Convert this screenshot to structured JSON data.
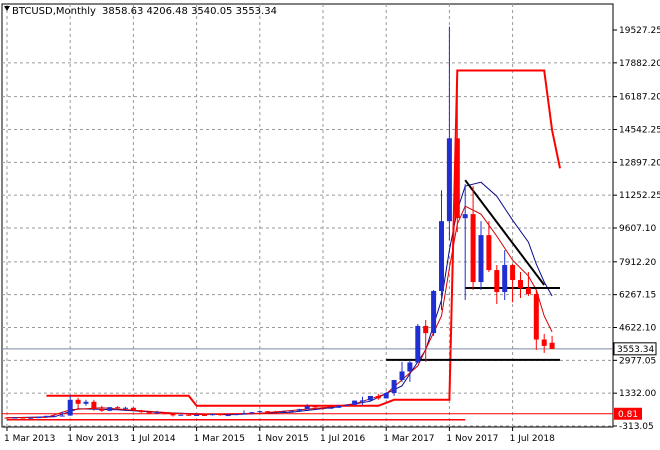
{
  "window": {
    "symbol_timeframe": "BTCUSD,Monthly",
    "ohlc": "3858.63 4206.48 3540.05 3553.34"
  },
  "colors": {
    "background": "#ffffff",
    "grid": "#9a9a9a",
    "bull_candle": "#1f2fd1",
    "bear_candle": "#ff0000",
    "ma_fast": "#d40000",
    "ma_slow": "#0a0a8c",
    "envelope_line": "#ff0000",
    "price_label_bg": "#ffffff",
    "red_label_bg": "#ff0000",
    "trendline": "#000000"
  },
  "chart_data": {
    "type": "candlestick",
    "title": "",
    "y_ticks": [
      19527.25,
      17882.2,
      16187.2,
      14542.25,
      12897.2,
      11252.25,
      9607.1,
      7912.2,
      6267.15,
      4622.1,
      2977.05,
      1332.0,
      -313.05
    ],
    "y_tick_labels": [
      "19527.25",
      "17882.20",
      "16187.20",
      "14542.25",
      "12897.20",
      "11252.25",
      "9607.10",
      "7912.20",
      "6267.15",
      "4622.10",
      "2977.05",
      "1332.00",
      "-313.05"
    ],
    "x_labels": [
      "1 Mar 2013",
      "1 Nov 2013",
      "1 Jul 2014",
      "1 Mar 2015",
      "1 Nov 2015",
      "1 Jul 2016",
      "1 Mar 2017",
      "1 Nov 2017",
      "1 Jul 2018"
    ],
    "x_label_month_index": [
      0,
      8,
      16,
      24,
      32,
      40,
      48,
      56,
      64
    ],
    "ylim": [
      -313.05,
      20300
    ],
    "grid": true,
    "current_price": "3553.34",
    "red_marker_label": "0.81",
    "candles": [
      [
        110,
        140,
        70,
        95
      ],
      [
        95,
        120,
        80,
        110
      ],
      [
        110,
        115,
        80,
        95
      ],
      [
        95,
        120,
        90,
        100
      ],
      [
        100,
        140,
        90,
        130
      ],
      [
        130,
        200,
        120,
        195
      ],
      [
        195,
        210,
        130,
        200
      ],
      [
        200,
        400,
        190,
        210
      ],
      [
        210,
        1200,
        200,
        1000
      ],
      [
        1000,
        1100,
        550,
        800
      ],
      [
        800,
        1000,
        700,
        900
      ],
      [
        900,
        1000,
        450,
        550
      ],
      [
        550,
        700,
        400,
        450
      ],
      [
        450,
        630,
        430,
        630
      ],
      [
        630,
        680,
        480,
        580
      ],
      [
        580,
        650,
        500,
        600
      ],
      [
        600,
        620,
        450,
        470
      ],
      [
        470,
        500,
        350,
        380
      ],
      [
        380,
        420,
        280,
        320
      ],
      [
        320,
        450,
        300,
        380
      ],
      [
        380,
        390,
        270,
        320
      ],
      [
        320,
        330,
        160,
        220
      ],
      [
        220,
        270,
        210,
        250
      ],
      [
        250,
        260,
        200,
        235
      ],
      [
        235,
        260,
        220,
        240
      ],
      [
        240,
        250,
        220,
        230
      ],
      [
        230,
        310,
        210,
        280
      ],
      [
        280,
        300,
        200,
        230
      ],
      [
        230,
        260,
        210,
        235
      ],
      [
        235,
        300,
        230,
        280
      ],
      [
        280,
        470,
        270,
        320
      ],
      [
        320,
        390,
        310,
        380
      ],
      [
        380,
        470,
        350,
        430
      ],
      [
        430,
        440,
        400,
        420
      ],
      [
        420,
        450,
        350,
        370
      ],
      [
        370,
        450,
        360,
        420
      ],
      [
        420,
        460,
        410,
        450
      ],
      [
        450,
        550,
        440,
        530
      ],
      [
        530,
        780,
        520,
        680
      ],
      [
        680,
        690,
        600,
        620
      ],
      [
        620,
        630,
        480,
        570
      ],
      [
        570,
        620,
        560,
        600
      ],
      [
        600,
        730,
        590,
        700
      ],
      [
        700,
        760,
        690,
        750
      ],
      [
        750,
        960,
        740,
        960
      ],
      [
        960,
        1150,
        750,
        970
      ],
      [
        970,
        1200,
        910,
        1190
      ],
      [
        1190,
        1300,
        1000,
        1070
      ],
      [
        1070,
        1400,
        1060,
        1340
      ],
      [
        1340,
        2000,
        1200,
        1990
      ],
      [
        1990,
        2900,
        1900,
        2420
      ],
      [
        2420,
        3000,
        1900,
        2870
      ],
      [
        2870,
        4800,
        2850,
        4700
      ],
      [
        4700,
        5000,
        2900,
        4340
      ],
      [
        4340,
        6500,
        4200,
        6450
      ],
      [
        6450,
        11500,
        5500,
        9950
      ],
      [
        9950,
        19700,
        9000,
        14100
      ],
      [
        14100,
        17200,
        9400,
        10100
      ],
      [
        10100,
        11800,
        6000,
        10300
      ],
      [
        10300,
        11700,
        6500,
        6900
      ],
      [
        6900,
        9950,
        6500,
        9250
      ],
      [
        9250,
        9950,
        7400,
        7500
      ],
      [
        7500,
        7750,
        5800,
        6400
      ],
      [
        6400,
        8500,
        6000,
        7750
      ],
      [
        7750,
        7800,
        5880,
        7000
      ],
      [
        7000,
        7400,
        6100,
        6600
      ],
      [
        6600,
        7400,
        6200,
        6300
      ],
      [
        6300,
        6500,
        3500,
        4020
      ],
      [
        4020,
        4300,
        3350,
        3700
      ],
      [
        3858.63,
        4206.48,
        3540.05,
        3553.34
      ]
    ],
    "ma_fast": [
      [
        0,
        100
      ],
      [
        5,
        120
      ],
      [
        8,
        500
      ],
      [
        12,
        600
      ],
      [
        16,
        480
      ],
      [
        24,
        260
      ],
      [
        32,
        330
      ],
      [
        40,
        600
      ],
      [
        44,
        800
      ],
      [
        48,
        1300
      ],
      [
        52,
        2700
      ],
      [
        55,
        5200
      ],
      [
        56,
        7600
      ],
      [
        57,
        9800
      ],
      [
        58,
        10700
      ],
      [
        60,
        10300
      ],
      [
        62,
        9200
      ],
      [
        64,
        8000
      ],
      [
        66,
        7200
      ],
      [
        67,
        6500
      ],
      [
        68,
        5200
      ],
      [
        69,
        4400
      ]
    ],
    "ma_slow": [
      [
        0,
        100
      ],
      [
        6,
        150
      ],
      [
        9,
        550
      ],
      [
        14,
        500
      ],
      [
        20,
        350
      ],
      [
        28,
        250
      ],
      [
        36,
        380
      ],
      [
        42,
        650
      ],
      [
        46,
        930
      ],
      [
        50,
        1700
      ],
      [
        53,
        3500
      ],
      [
        55,
        6000
      ],
      [
        56,
        8500
      ],
      [
        57,
        10500
      ],
      [
        58,
        11700
      ],
      [
        60,
        11900
      ],
      [
        62,
        11200
      ],
      [
        64,
        10000
      ],
      [
        66,
        8900
      ],
      [
        67,
        7800
      ],
      [
        68,
        6900
      ],
      [
        69,
        6200
      ]
    ],
    "envelope_line": [
      [
        5,
        1200
      ],
      [
        23,
        1200
      ],
      [
        24,
        700
      ],
      [
        47,
        700
      ],
      [
        49,
        1000
      ],
      [
        56,
        1000
      ],
      [
        57,
        17500
      ],
      [
        63,
        17500
      ],
      [
        64,
        17500
      ],
      [
        68,
        17500
      ],
      [
        69,
        14500
      ],
      [
        70,
        12600
      ]
    ],
    "trendline": [
      [
        58,
        12000
      ],
      [
        68,
        6750
      ]
    ],
    "level_lines": [
      [
        58,
        6600
      ],
      [
        70,
        6600
      ]
    ],
    "support_line": [
      [
        48,
        3000
      ],
      [
        70,
        3000
      ]
    ],
    "floor_line": [
      [
        0,
        0
      ],
      [
        58,
        0
      ]
    ]
  }
}
